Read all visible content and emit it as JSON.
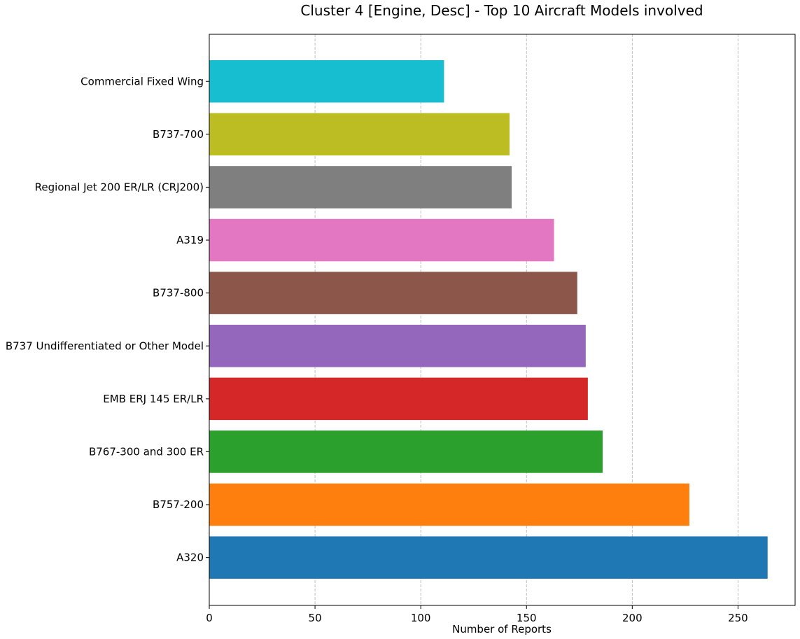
{
  "chart_data": {
    "type": "bar",
    "orientation": "horizontal",
    "title": "Cluster 4 [Engine, Desc] - Top 10 Aircraft Models involved",
    "xlabel": "Number of Reports",
    "ylabel": "",
    "xlim": [
      0,
      277
    ],
    "xticks": [
      0,
      50,
      100,
      150,
      200,
      250
    ],
    "grid": "x-axis dashed",
    "categories": [
      "A320",
      "B757-200",
      "B767-300 and 300 ER",
      "EMB ERJ 145 ER/LR",
      "B737 Undifferentiated or Other Model",
      "B737-800",
      "A319",
      "Regional Jet 200 ER/LR (CRJ200)",
      "B737-700",
      "Commercial Fixed Wing"
    ],
    "values": [
      264,
      227,
      186,
      179,
      178,
      174,
      163,
      143,
      142,
      111
    ],
    "colors": [
      "#1f77b4",
      "#ff7f0e",
      "#2ca02c",
      "#d62728",
      "#9467bd",
      "#8c564b",
      "#e377c2",
      "#7f7f7f",
      "#bcbd22",
      "#17becf"
    ]
  }
}
